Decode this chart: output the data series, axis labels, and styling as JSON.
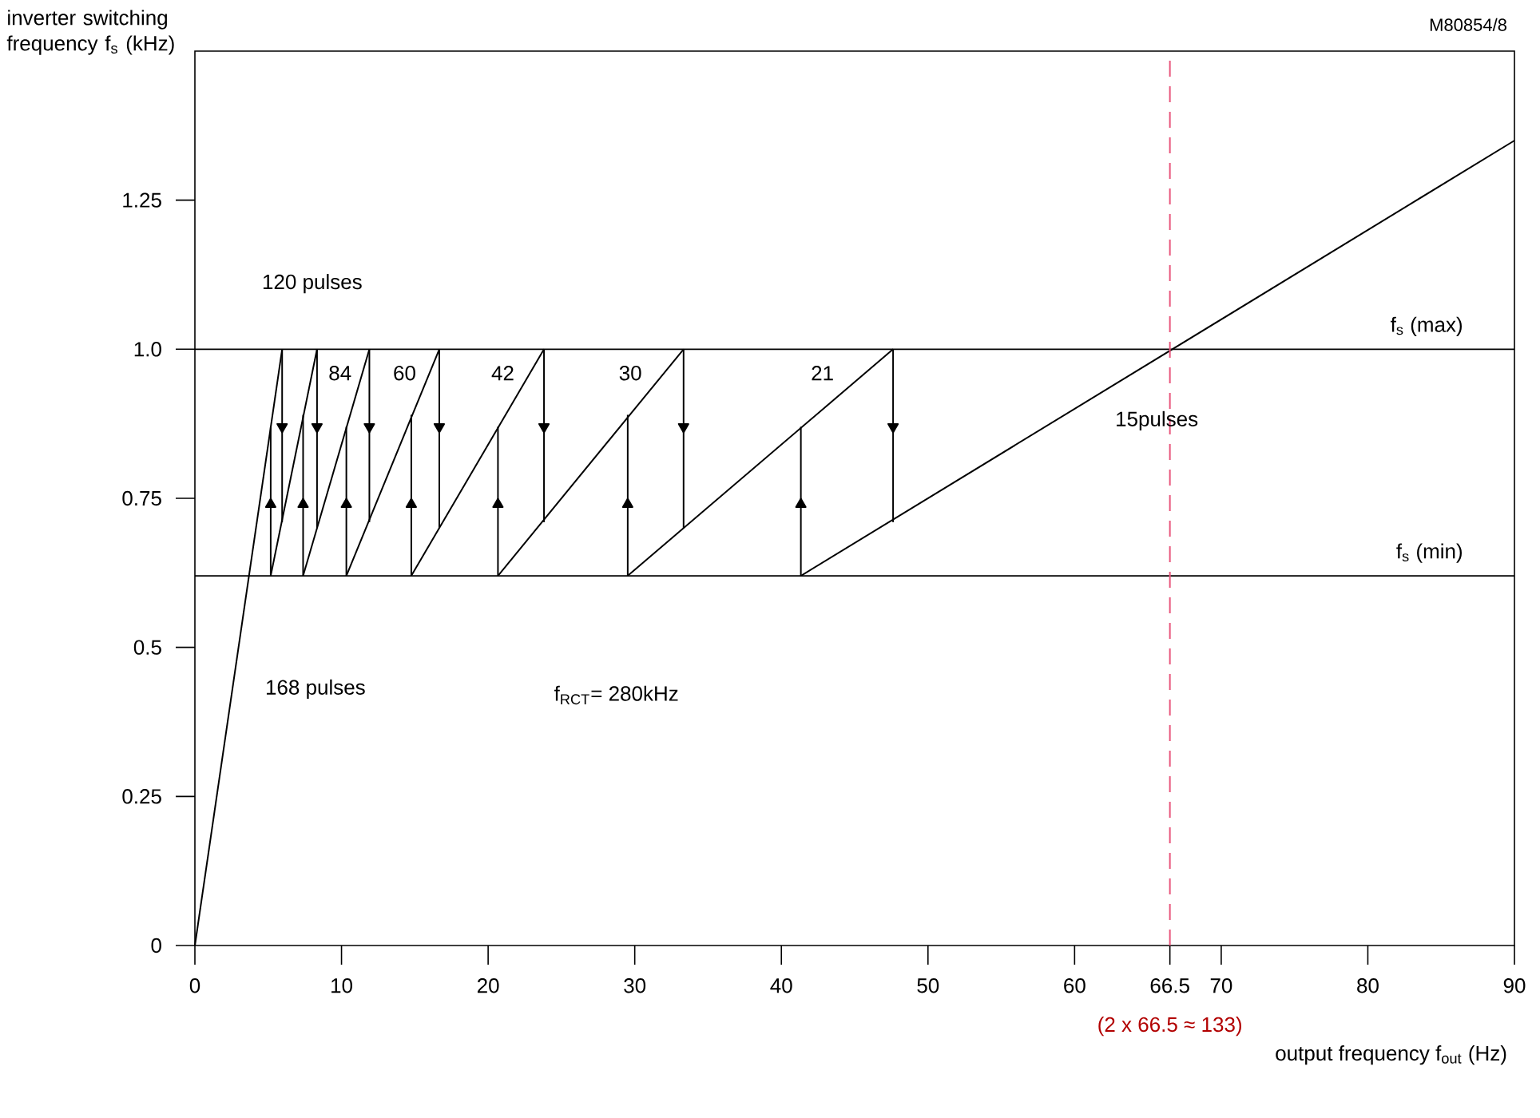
{
  "chart_data": {
    "type": "line",
    "xlabel": "output frequency f$_{out}$ (Hz)",
    "ylabel": "inverter switching frequency f$_{s}$ (kHz)",
    "xlim": [
      0,
      90
    ],
    "ylim": [
      0,
      1.5
    ],
    "xticks": [
      0,
      10,
      20,
      30,
      40,
      50,
      60,
      66.5,
      70,
      80,
      90
    ],
    "yticks": [
      0,
      0.25,
      0.5,
      0.75,
      {
        "value": 1,
        "label": "1.0"
      },
      1.25
    ],
    "grid": false,
    "marker": "none",
    "line_style": "solid",
    "series": [
      {
        "color": "#000000",
        "x": [
          0,
          5.95
        ],
        "values": [
          0,
          1.0
        ]
      },
      {
        "color": "#000000",
        "x": [
          5.17,
          8.33
        ],
        "values": [
          0.62,
          1.0
        ]
      },
      {
        "color": "#000000",
        "x": [
          7.38,
          11.9
        ],
        "values": [
          0.62,
          1.0
        ]
      },
      {
        "color": "#000000",
        "x": [
          10.33,
          16.67
        ],
        "values": [
          0.62,
          1.0
        ]
      },
      {
        "color": "#000000",
        "x": [
          14.76,
          23.81
        ],
        "values": [
          0.62,
          1.0
        ]
      },
      {
        "color": "#000000",
        "x": [
          20.67,
          33.33
        ],
        "values": [
          0.62,
          1.0
        ]
      },
      {
        "color": "#000000",
        "x": [
          29.52,
          47.62
        ],
        "values": [
          0.62,
          1.0
        ]
      },
      {
        "color": "#000000",
        "x": [
          41.33,
          90
        ],
        "values": [
          0.62,
          1.35
        ]
      },
      {
        "color": "#000000",
        "x": [
          5.95,
          5.95
        ],
        "values": [
          1.0,
          0.71
        ]
      },
      {
        "color": "#000000",
        "x": [
          8.33,
          8.33
        ],
        "values": [
          1.0,
          0.7
        ]
      },
      {
        "color": "#000000",
        "x": [
          11.9,
          11.9
        ],
        "values": [
          1.0,
          0.71
        ]
      },
      {
        "color": "#000000",
        "x": [
          16.67,
          16.67
        ],
        "values": [
          1.0,
          0.7
        ]
      },
      {
        "color": "#000000",
        "x": [
          23.81,
          23.81
        ],
        "values": [
          1.0,
          0.71
        ]
      },
      {
        "color": "#000000",
        "x": [
          33.33,
          33.33
        ],
        "values": [
          1.0,
          0.7
        ]
      },
      {
        "color": "#000000",
        "x": [
          47.62,
          47.62
        ],
        "values": [
          1.0,
          0.71
        ]
      },
      {
        "color": "#000000",
        "x": [
          5.17,
          5.17
        ],
        "values": [
          0.62,
          0.87
        ]
      },
      {
        "color": "#000000",
        "x": [
          7.38,
          7.38
        ],
        "values": [
          0.62,
          0.89
        ]
      },
      {
        "color": "#000000",
        "x": [
          10.33,
          10.33
        ],
        "values": [
          0.62,
          0.87
        ]
      },
      {
        "color": "#000000",
        "x": [
          14.76,
          14.76
        ],
        "values": [
          0.62,
          0.89
        ]
      },
      {
        "color": "#000000",
        "x": [
          20.67,
          20.67
        ],
        "values": [
          0.62,
          0.87
        ]
      },
      {
        "color": "#000000",
        "x": [
          29.52,
          29.52
        ],
        "values": [
          0.62,
          0.89
        ]
      },
      {
        "color": "#000000",
        "x": [
          41.33,
          41.33
        ],
        "values": [
          0.62,
          0.87
        ]
      },
      {
        "type": "scatter",
        "marker": "triangle",
        "color": "#000000",
        "x": [
          5.95,
          8.33,
          11.9,
          16.67,
          23.81,
          33.33,
          47.62
        ],
        "values": [
          0.87,
          0.87,
          0.87,
          0.87,
          0.87,
          0.87,
          0.87
        ]
      },
      {
        "type": "scatter",
        "marker": "triangle",
        "color": "#000000",
        "x": [
          5.17,
          7.38,
          10.33,
          14.76,
          20.67,
          29.52,
          41.33
        ],
        "values": [
          0.74,
          0.74,
          0.74,
          0.74,
          0.74,
          0.74,
          0.74
        ]
      }
    ],
    "ref_lines": [
      {
        "axis": "y",
        "value": 1.0,
        "label": "f$_{s}$ (max)"
      },
      {
        "axis": "y",
        "value": 0.62,
        "label": "f$_{s}$ (min)"
      },
      {
        "axis": "x",
        "value": 66.5,
        "color": "#e8567c",
        "line_style": "dashed"
      }
    ],
    "annotations": [
      "M80854/8",
      "f$_{RCT}$= 280kHz",
      "(2 x 66.5 ≈ 133)",
      "120 pulses",
      "84",
      "60",
      "42",
      "30",
      "21",
      "15pulses",
      "168 pulses"
    ]
  }
}
